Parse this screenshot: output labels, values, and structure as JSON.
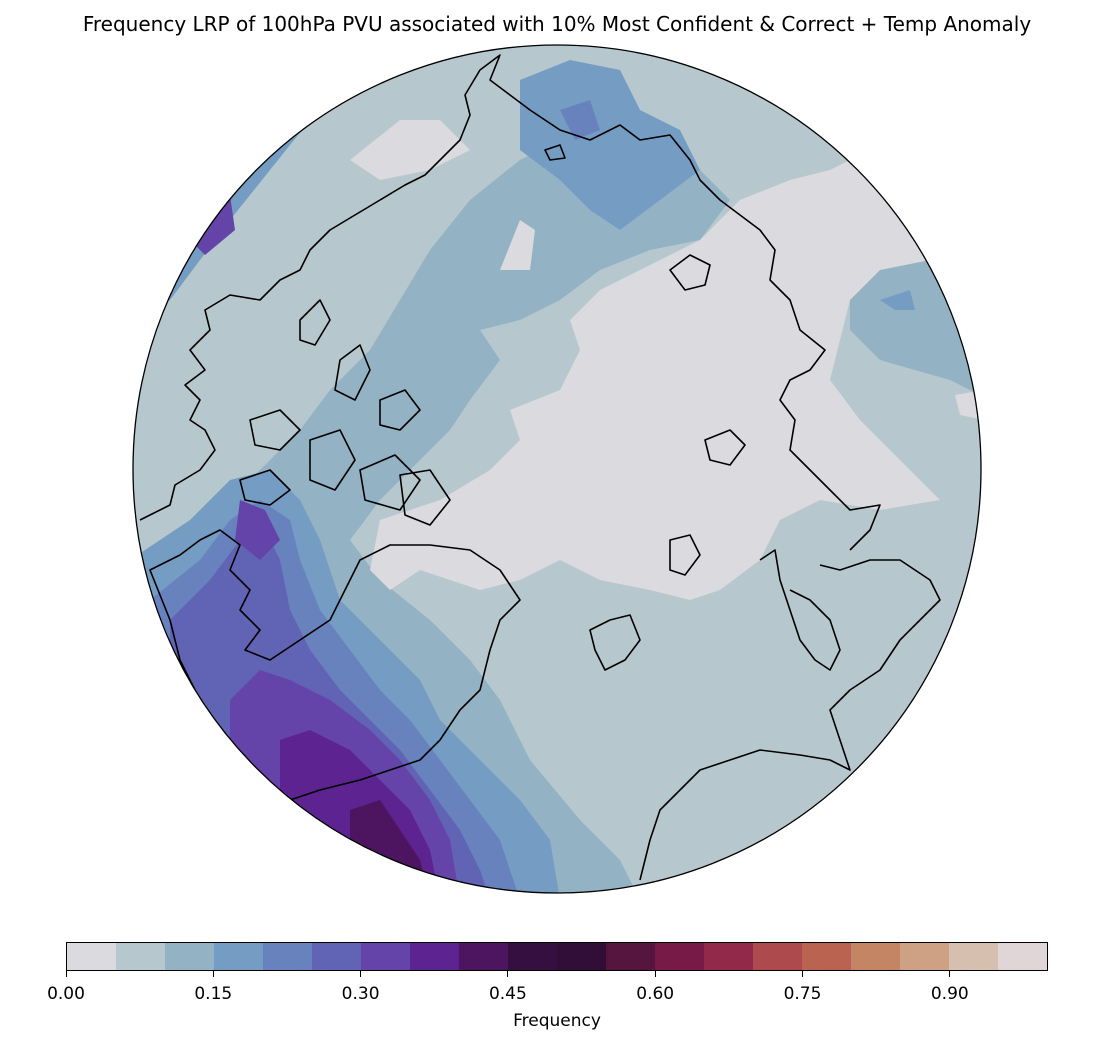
{
  "title": "Frequency LRP of 100hPa PVU associated with 10% Most Confident & Correct + Temp Anomaly",
  "colorbar": {
    "label": "Frequency",
    "min": 0.0,
    "max": 1.0,
    "levels": 20,
    "colors": [
      "#dbdadf",
      "#b6c8cd",
      "#93b2c3",
      "#759cc3",
      "#6782bd",
      "#6163b4",
      "#6444a8",
      "#5c2391",
      "#4d145f",
      "#360f41",
      "#300e38",
      "#55153f",
      "#781a47",
      "#92294b",
      "#ac4a4e",
      "#ba6351",
      "#c48564",
      "#cea184",
      "#d6bfae",
      "#e0d6d7"
    ],
    "ticks": [
      {
        "value": 0.0,
        "label": "0.00"
      },
      {
        "value": 0.15,
        "label": "0.15"
      },
      {
        "value": 0.3,
        "label": "0.30"
      },
      {
        "value": 0.45,
        "label": "0.45"
      },
      {
        "value": 0.6,
        "label": "0.60"
      },
      {
        "value": 0.75,
        "label": "0.75"
      },
      {
        "value": 0.9,
        "label": "0.90"
      }
    ]
  },
  "map": {
    "projection": "north-polar-stereographic",
    "background_level_color": "#b6c8cd",
    "coastline_color": "#000000"
  }
}
